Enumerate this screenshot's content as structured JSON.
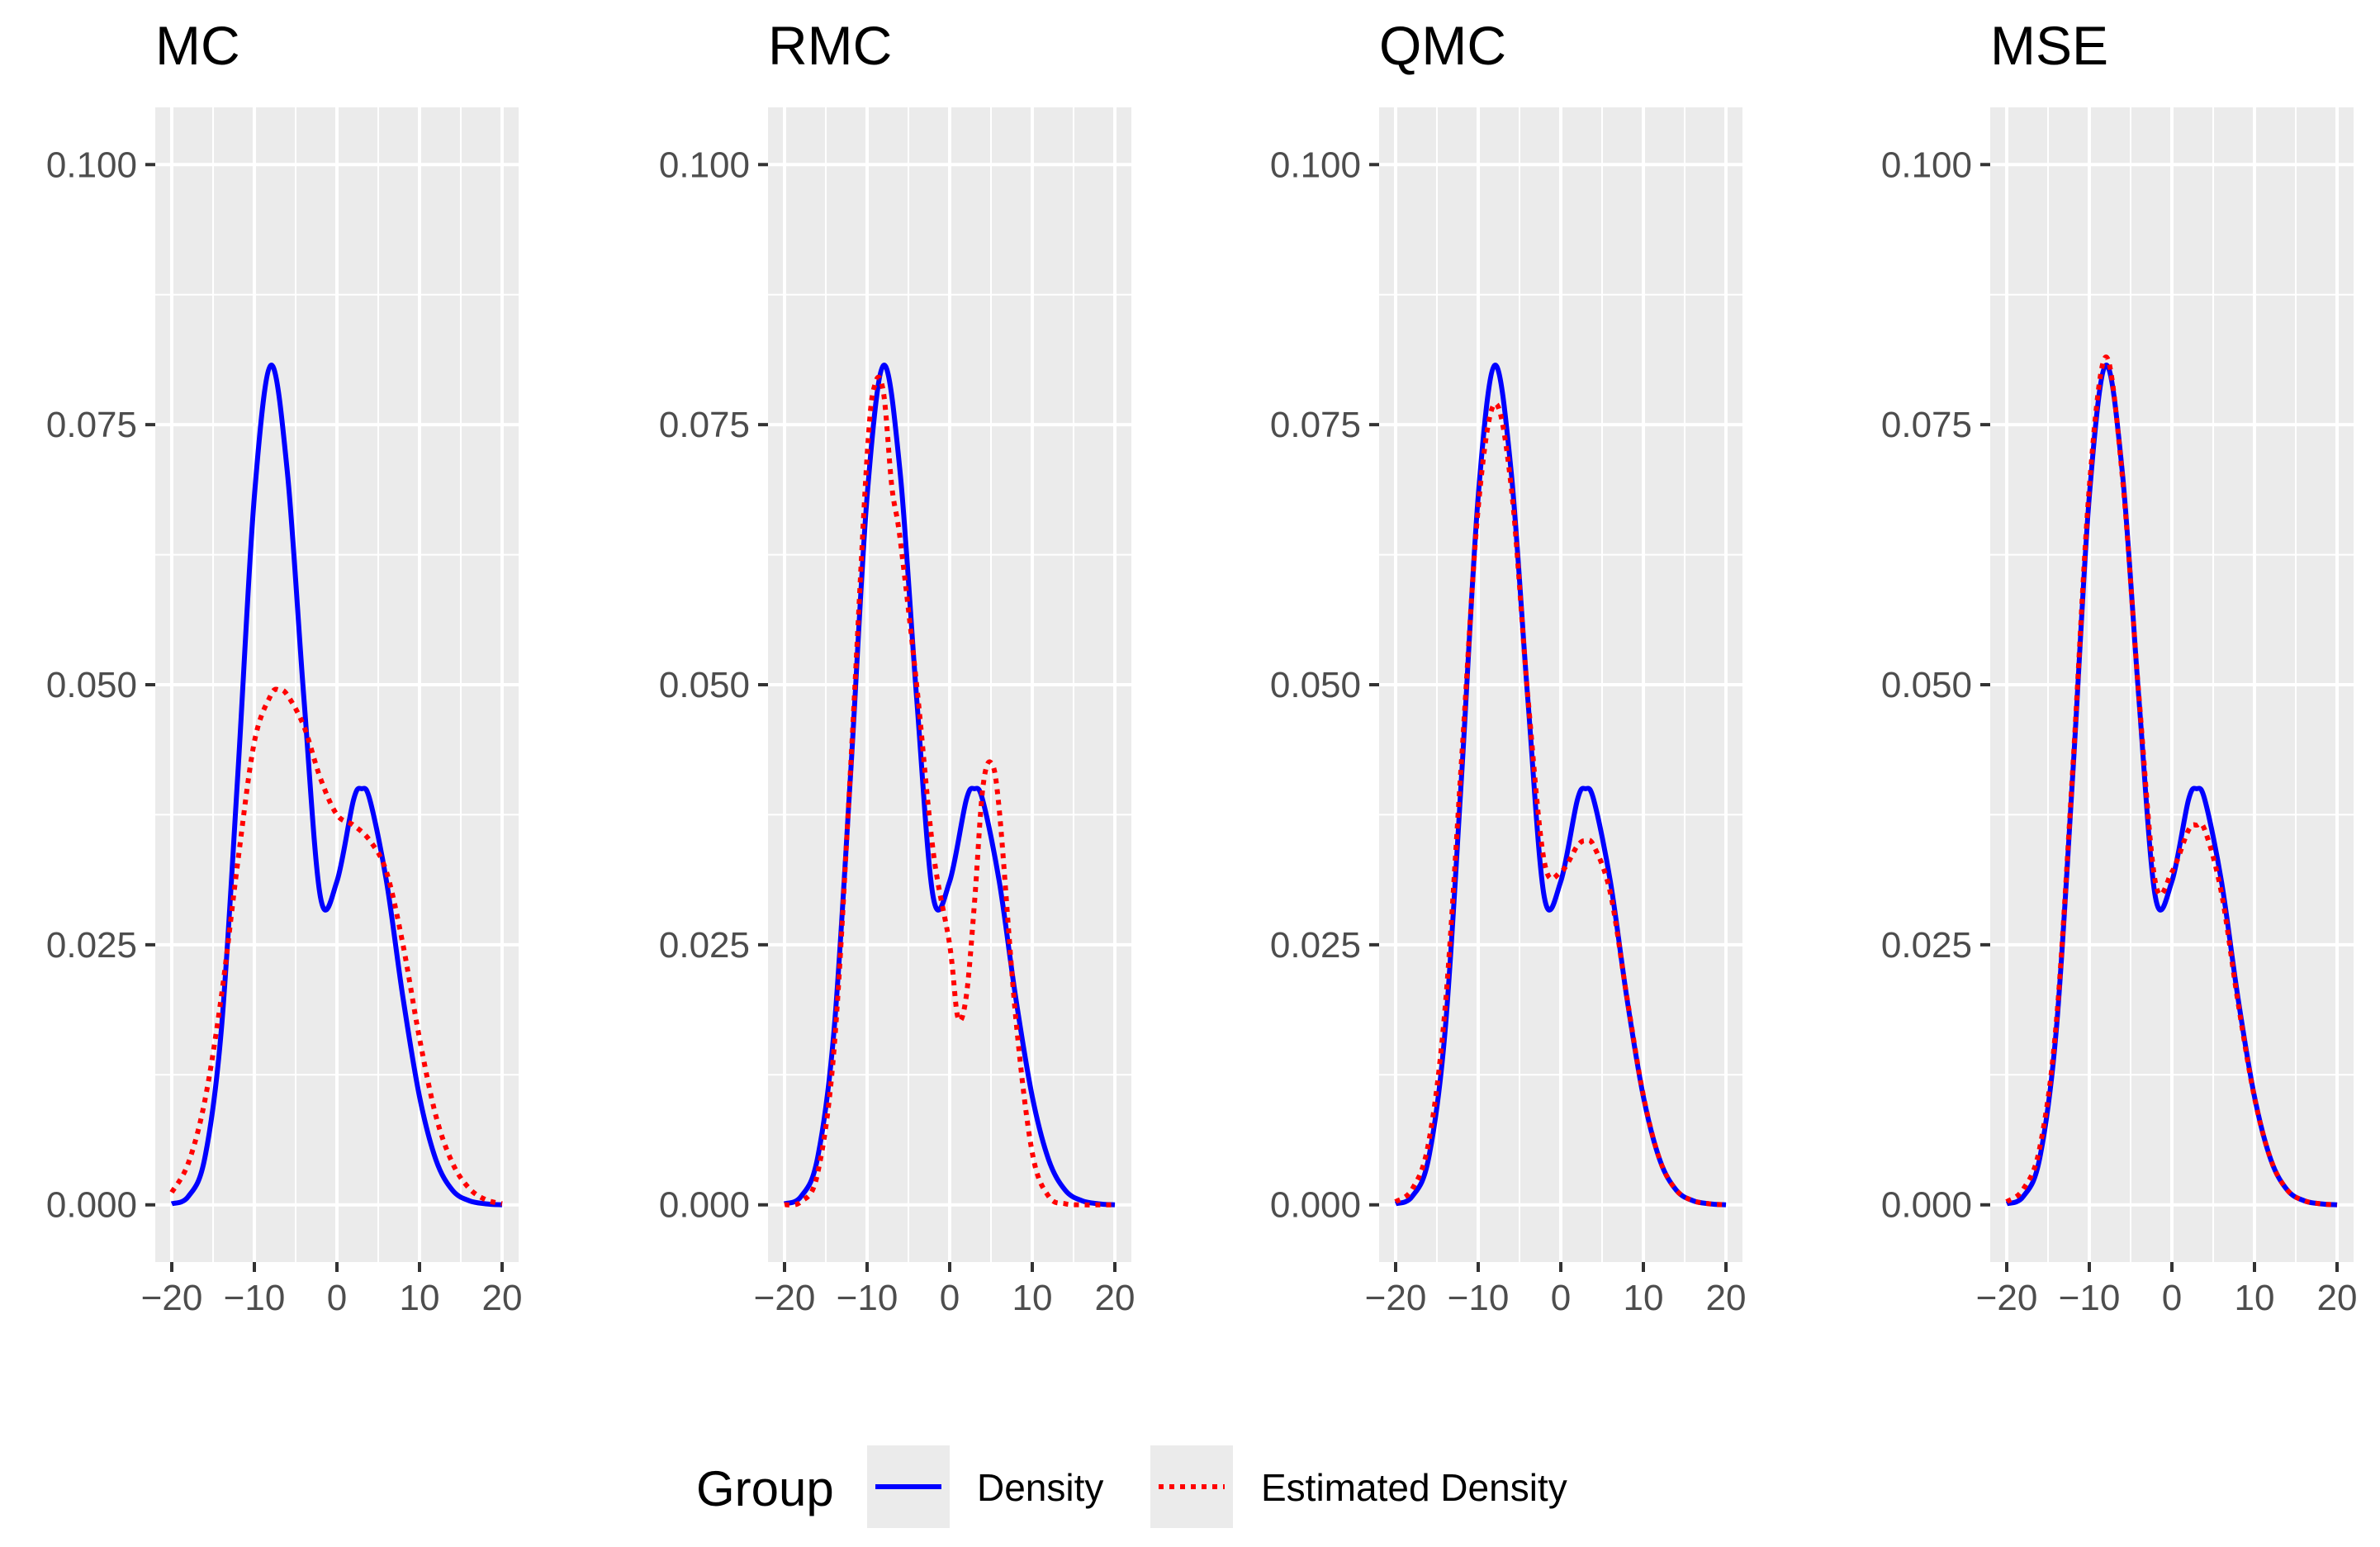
{
  "chart_data": [
    {
      "type": "line",
      "title": "MC",
      "xlim": [
        -22,
        22
      ],
      "ylim": [
        -0.0055,
        0.1055
      ],
      "xticks": [
        -20,
        -10,
        0,
        10,
        20
      ],
      "xtick_labels": [
        "−20",
        "−10",
        "0",
        "10",
        "20"
      ],
      "yticks": [
        0,
        0.025,
        0.05,
        0.075,
        0.1
      ],
      "ytick_labels": [
        "0.000",
        "0.025",
        "0.050",
        "0.075",
        "0.100"
      ],
      "series": [
        {
          "name": "Density",
          "x": [
            -20,
            -18,
            -16,
            -14,
            -12,
            -10,
            -8,
            -6,
            -4,
            -2,
            0,
            2,
            3,
            4,
            6,
            8,
            10,
            12,
            14,
            16,
            18,
            20
          ],
          "y": [
            0.0001,
            0.0008,
            0.0045,
            0.0168,
            0.0414,
            0.0681,
            0.0807,
            0.0704,
            0.0487,
            0.0296,
            0.0311,
            0.0389,
            0.04,
            0.0389,
            0.0311,
            0.0199,
            0.0104,
            0.0043,
            0.0014,
            0.0004,
            0.0001,
            0.0
          ]
        },
        {
          "name": "Estimated Density",
          "x": [
            -20,
            -18,
            -16,
            -14,
            -12,
            -10,
            -8,
            -7,
            -6,
            -4,
            -2,
            0,
            2,
            4,
            6,
            8,
            10,
            12,
            14,
            16,
            18,
            20
          ],
          "y": [
            0.0012,
            0.004,
            0.01,
            0.02,
            0.033,
            0.0445,
            0.049,
            0.0495,
            0.049,
            0.046,
            0.041,
            0.0375,
            0.0365,
            0.035,
            0.032,
            0.025,
            0.016,
            0.0085,
            0.004,
            0.0016,
            0.0005,
            0.0001
          ]
        }
      ]
    },
    {
      "type": "line",
      "title": "RMC",
      "xlim": [
        -22,
        22
      ],
      "ylim": [
        -0.0055,
        0.1055
      ],
      "xticks": [
        -20,
        -10,
        0,
        10,
        20
      ],
      "xtick_labels": [
        "−20",
        "−10",
        "0",
        "10",
        "20"
      ],
      "yticks": [
        0,
        0.025,
        0.05,
        0.075,
        0.1
      ],
      "ytick_labels": [
        "0.000",
        "0.025",
        "0.050",
        "0.075",
        "0.100"
      ],
      "series": [
        {
          "name": "Density",
          "x": [
            -20,
            -18,
            -16,
            -14,
            -12,
            -10,
            -8,
            -6,
            -4,
            -2,
            0,
            2,
            3,
            4,
            6,
            8,
            10,
            12,
            14,
            16,
            18,
            20
          ],
          "y": [
            0.0001,
            0.0008,
            0.0045,
            0.0168,
            0.0414,
            0.0681,
            0.0807,
            0.0704,
            0.0487,
            0.0296,
            0.0311,
            0.0389,
            0.04,
            0.0389,
            0.0311,
            0.0199,
            0.0104,
            0.0043,
            0.0014,
            0.0004,
            0.0001,
            0.0
          ]
        },
        {
          "name": "Estimated Density",
          "x": [
            -20,
            -18,
            -16,
            -14,
            -12,
            -10,
            -9,
            -8,
            -7,
            -6,
            -4,
            -2,
            0,
            1,
            2,
            3,
            4,
            5,
            6,
            8,
            10,
            12,
            14,
            16,
            18,
            20
          ],
          "y": [
            0.0,
            0.0003,
            0.003,
            0.015,
            0.042,
            0.072,
            0.079,
            0.078,
            0.069,
            0.064,
            0.05,
            0.034,
            0.025,
            0.018,
            0.02,
            0.029,
            0.04,
            0.0425,
            0.038,
            0.018,
            0.005,
            0.0008,
            0.0001,
            0.0,
            0.0,
            0.0
          ]
        }
      ]
    },
    {
      "type": "line",
      "title": "QMC",
      "xlim": [
        -22,
        22
      ],
      "ylim": [
        -0.0055,
        0.1055
      ],
      "xticks": [
        -20,
        -10,
        0,
        10,
        20
      ],
      "xtick_labels": [
        "−20",
        "−10",
        "0",
        "10",
        "20"
      ],
      "yticks": [
        0,
        0.025,
        0.05,
        0.075,
        0.1
      ],
      "ytick_labels": [
        "0.000",
        "0.025",
        "0.050",
        "0.075",
        "0.100"
      ],
      "series": [
        {
          "name": "Density",
          "x": [
            -20,
            -18,
            -16,
            -14,
            -12,
            -10,
            -8,
            -6,
            -4,
            -2,
            0,
            2,
            3,
            4,
            6,
            8,
            10,
            12,
            14,
            16,
            18,
            20
          ],
          "y": [
            0.0001,
            0.0008,
            0.0045,
            0.0168,
            0.0414,
            0.0681,
            0.0807,
            0.0704,
            0.0487,
            0.0296,
            0.0311,
            0.0389,
            0.04,
            0.0389,
            0.0311,
            0.0199,
            0.0104,
            0.0043,
            0.0014,
            0.0004,
            0.0001,
            0.0
          ]
        },
        {
          "name": "Estimated Density",
          "x": [
            -20,
            -18,
            -16,
            -14,
            -12,
            -10,
            -8,
            -6,
            -4,
            -2,
            0,
            2,
            3,
            4,
            6,
            8,
            10,
            12,
            14,
            16,
            18,
            20
          ],
          "y": [
            0.0003,
            0.0015,
            0.006,
            0.019,
            0.043,
            0.067,
            0.077,
            0.069,
            0.049,
            0.033,
            0.032,
            0.0345,
            0.035,
            0.0345,
            0.03,
            0.02,
            0.0105,
            0.0043,
            0.0014,
            0.0004,
            0.0001,
            0.0
          ]
        }
      ]
    },
    {
      "type": "line",
      "title": "MSE",
      "xlim": [
        -22,
        22
      ],
      "ylim": [
        -0.0055,
        0.1055
      ],
      "xticks": [
        -20,
        -10,
        0,
        10,
        20
      ],
      "xtick_labels": [
        "−20",
        "−10",
        "0",
        "10",
        "20"
      ],
      "yticks": [
        0,
        0.025,
        0.05,
        0.075,
        0.1
      ],
      "ytick_labels": [
        "0.000",
        "0.025",
        "0.050",
        "0.075",
        "0.100"
      ],
      "series": [
        {
          "name": "Density",
          "x": [
            -20,
            -18,
            -16,
            -14,
            -12,
            -10,
            -8,
            -6,
            -4,
            -2,
            0,
            2,
            3,
            4,
            6,
            8,
            10,
            12,
            14,
            16,
            18,
            20
          ],
          "y": [
            0.0001,
            0.0008,
            0.0045,
            0.0168,
            0.0414,
            0.0681,
            0.0807,
            0.0704,
            0.0487,
            0.0296,
            0.0311,
            0.0389,
            0.04,
            0.0389,
            0.0311,
            0.0199,
            0.0104,
            0.0043,
            0.0014,
            0.0004,
            0.0001,
            0.0
          ]
        },
        {
          "name": "Estimated Density",
          "x": [
            -20,
            -18,
            -16,
            -14,
            -12,
            -10,
            -8,
            -6,
            -4,
            -2,
            0,
            2,
            3,
            4,
            6,
            8,
            10,
            12,
            14,
            16,
            18,
            20
          ],
          "y": [
            0.0003,
            0.0015,
            0.0055,
            0.0175,
            0.042,
            0.069,
            0.0815,
            0.07,
            0.049,
            0.031,
            0.032,
            0.036,
            0.0365,
            0.036,
            0.03,
            0.0195,
            0.0103,
            0.0043,
            0.0014,
            0.0004,
            0.0001,
            0.0
          ]
        }
      ]
    }
  ],
  "legend": {
    "title": "Group",
    "items": [
      {
        "label": "Density",
        "color": "#0000ff",
        "dash": "solid"
      },
      {
        "label": "Estimated Density",
        "color": "#ff0000",
        "dash": "dotted"
      }
    ]
  },
  "colors": {
    "panel_background": "#ebebeb",
    "grid": "#ffffff",
    "density": "#0000ff",
    "estimated_density": "#ff0000",
    "tick_text": "#4d4d4d"
  }
}
